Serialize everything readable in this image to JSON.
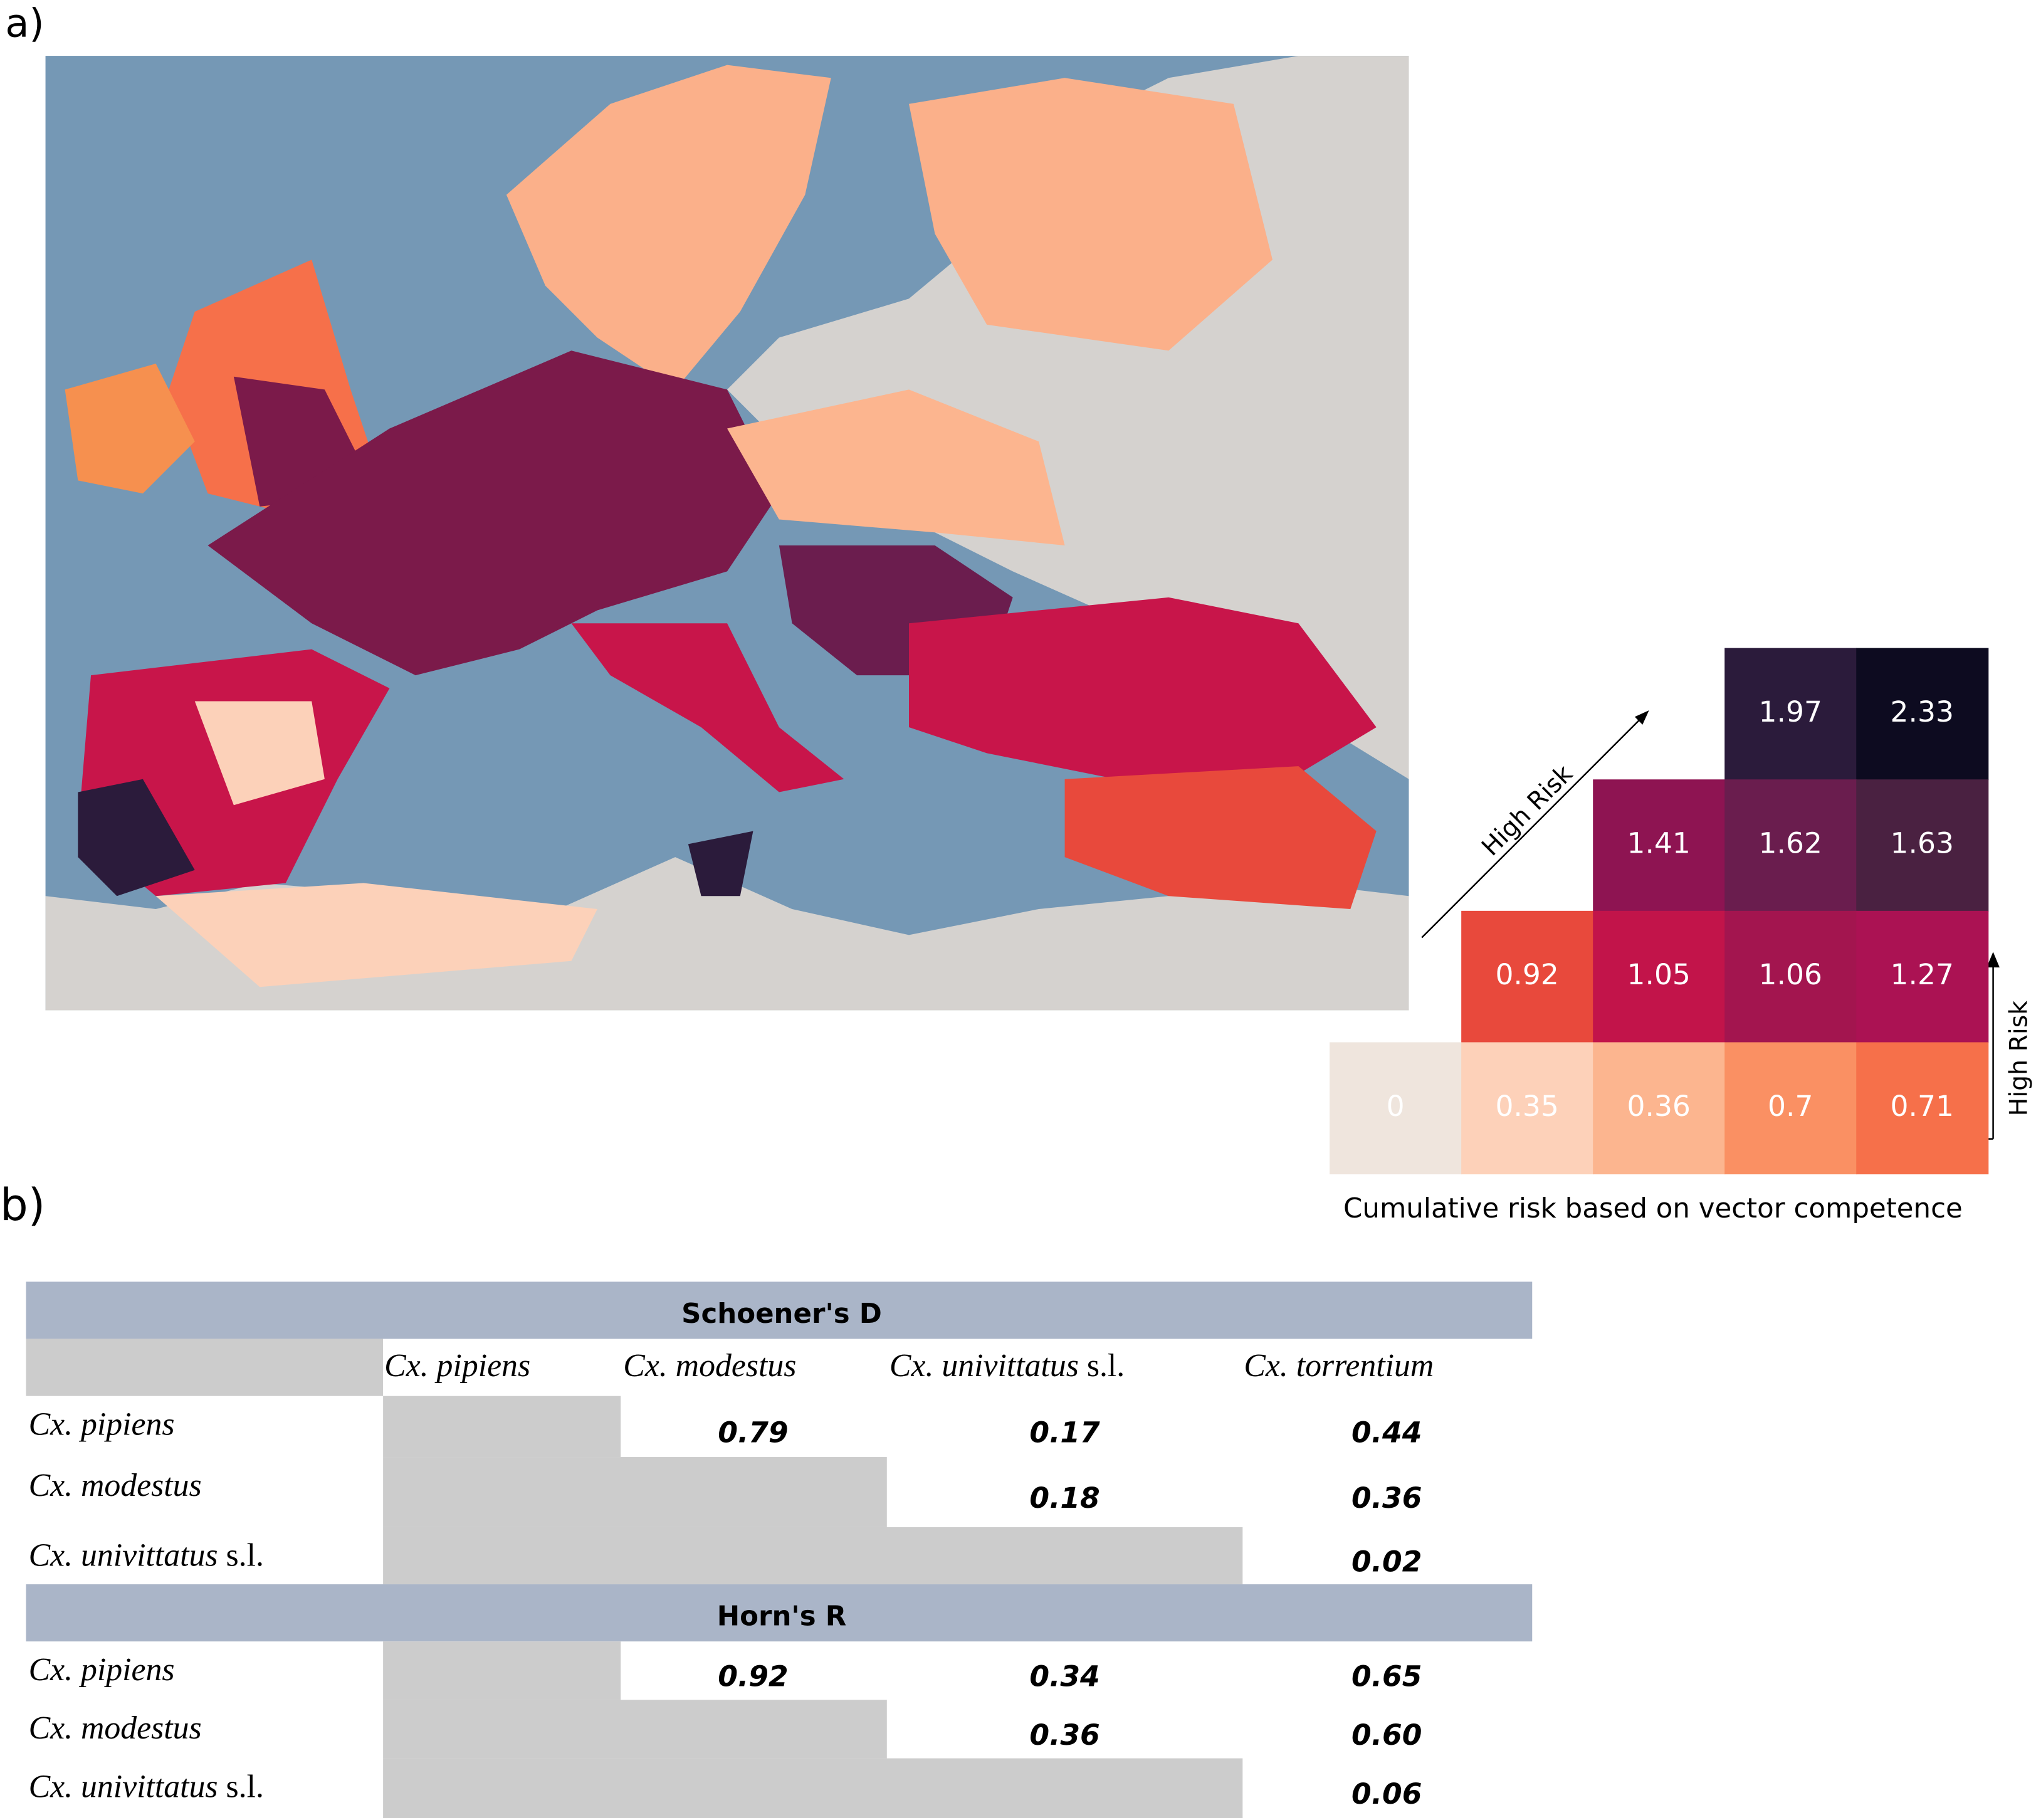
{
  "panel_a": {
    "label": "a)",
    "legend": {
      "rows": [
        [
          {
            "value": "1.97",
            "color": "#2b1b3b"
          },
          {
            "value": "2.33",
            "color": "#0d0b20"
          }
        ],
        [
          {
            "value": "1.41",
            "color": "#8e1452"
          },
          {
            "value": "1.62",
            "color": "#6a1d4e"
          },
          {
            "value": "1.63",
            "color": "#4a2141"
          }
        ],
        [
          {
            "value": "0.92",
            "color": "#e8493c"
          },
          {
            "value": "1.05",
            "color": "#c2144a"
          },
          {
            "value": "1.06",
            "color": "#a3154f"
          },
          {
            "value": "1.27",
            "color": "#ab1253"
          }
        ],
        [
          {
            "value": "0",
            "color": "#efe5dd"
          },
          {
            "value": "0.35",
            "color": "#fdd1b9"
          },
          {
            "value": "0.36",
            "color": "#fcb58f"
          },
          {
            "value": "0.7",
            "color": "#fa9063"
          },
          {
            "value": "0.71",
            "color": "#f6704a"
          }
        ]
      ],
      "diagonal_label": "High Risk",
      "vertical_label": "High Risk",
      "caption": "Cumulative risk based on vector competence"
    }
  },
  "panel_b": {
    "label": "b)",
    "columns": [
      {
        "name": "Cx. pipiens"
      },
      {
        "name": "Cx. modestus"
      },
      {
        "name": "Cx. univittatus",
        "suffix": "s.l."
      },
      {
        "name": "Cx. torrentium"
      }
    ],
    "sections": [
      {
        "title": "Schoener's D",
        "rows": [
          {
            "name": "Cx. pipiens",
            "values": [
              "0.79",
              "0.17",
              "0.44"
            ]
          },
          {
            "name": "Cx. modestus",
            "values": [
              "0.18",
              "0.36"
            ]
          },
          {
            "name": "Cx. univittatus",
            "suffix": "s.l.",
            "values": [
              "0.02"
            ]
          }
        ]
      },
      {
        "title": "Horn's R",
        "rows": [
          {
            "name": "Cx. pipiens",
            "values": [
              "0.92",
              "0.34",
              "0.65"
            ]
          },
          {
            "name": "Cx. modestus",
            "values": [
              "0.36",
              "0.60"
            ]
          },
          {
            "name": "Cx. univittatus",
            "suffix": "s.l.",
            "values": [
              "0.06"
            ]
          }
        ]
      }
    ]
  }
}
